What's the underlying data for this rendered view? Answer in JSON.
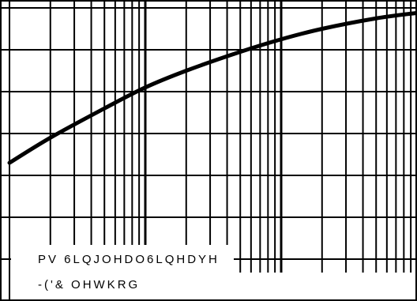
{
  "chart_data": {
    "type": "line",
    "title": "",
    "xlabel": "",
    "ylabel": "",
    "x_scale": "log",
    "xlim": [
      0.1,
      100
    ],
    "ylim": [
      0,
      7
    ],
    "grid": true,
    "annotations": [
      "PV 6LQJOHDO6LQHDYH",
      "-('& OHWKRG"
    ],
    "series": [
      {
        "x": [
          0.1,
          0.2,
          0.5,
          1,
          2,
          5,
          10,
          20,
          50,
          100
        ],
        "y": [
          3.3,
          3.9,
          4.6,
          5.1,
          5.5,
          5.95,
          6.25,
          6.5,
          6.75,
          6.88
        ]
      }
    ]
  }
}
